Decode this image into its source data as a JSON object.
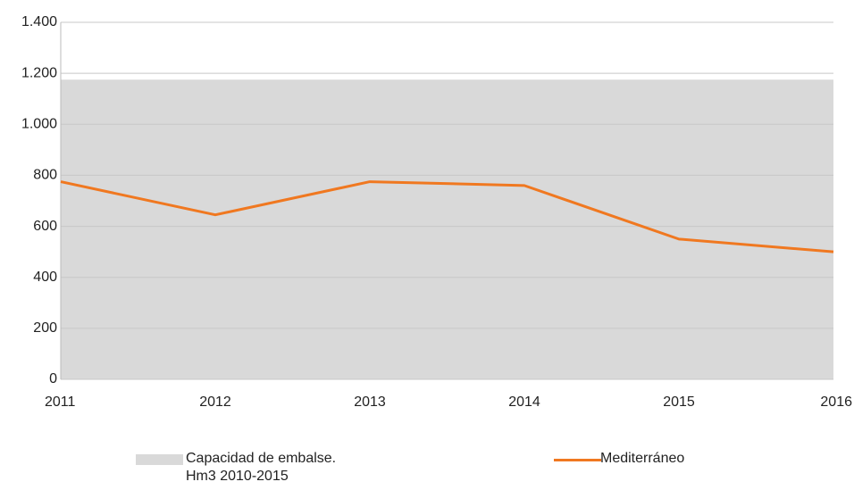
{
  "chart_data": {
    "type": "line",
    "categories": [
      "2011",
      "2012",
      "2013",
      "2014",
      "2015",
      "2016"
    ],
    "series": [
      {
        "name": "Capacidad de embalse. Hm3 2010-2015",
        "type": "area",
        "color": "#d9d9d9",
        "values": [
          1175,
          1175,
          1175,
          1175,
          1175,
          1175
        ]
      },
      {
        "name": "Mediterráneo",
        "type": "line",
        "color": "#f07820",
        "values": [
          775,
          645,
          775,
          760,
          550,
          500
        ]
      }
    ],
    "ylim": [
      0,
      1400
    ],
    "yticks": [
      0,
      200,
      400,
      600,
      800,
      {
        "value": 1000,
        "label": "1.000"
      },
      {
        "value": 1200,
        "label": "1.200"
      },
      {
        "value": 1400,
        "label": "1.400"
      }
    ],
    "grid": true
  }
}
